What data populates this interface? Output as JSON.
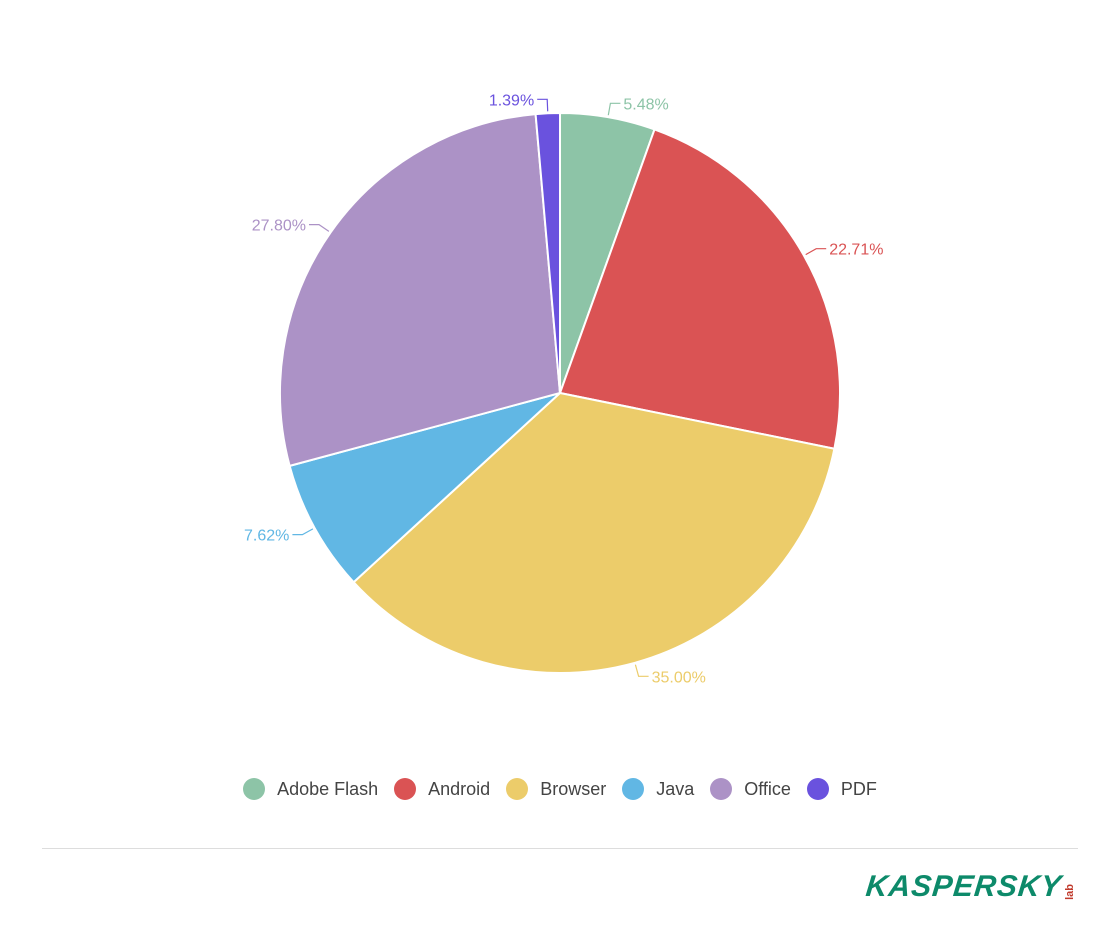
{
  "chart_data": {
    "type": "pie",
    "slices": [
      {
        "name": "Adobe Flash",
        "value": 5.48,
        "label": "5.48%",
        "color": "#8dc4a7"
      },
      {
        "name": "Android",
        "value": 22.71,
        "label": "22.71%",
        "color": "#da5354"
      },
      {
        "name": "Browser",
        "value": 35.0,
        "label": "35.00%",
        "color": "#eccc6a"
      },
      {
        "name": "Java",
        "value": 7.62,
        "label": "7.62%",
        "color": "#61b7e4"
      },
      {
        "name": "Office",
        "value": 27.8,
        "label": "27.80%",
        "color": "#ac92c6"
      },
      {
        "name": "PDF",
        "value": 1.39,
        "label": "1.39%",
        "color": "#6a52de"
      }
    ],
    "start_angle": "12 o'clock",
    "direction": "clockwise",
    "legend_position": "bottom"
  },
  "logo": {
    "text": "KASPERSKY",
    "sub": "lab"
  }
}
